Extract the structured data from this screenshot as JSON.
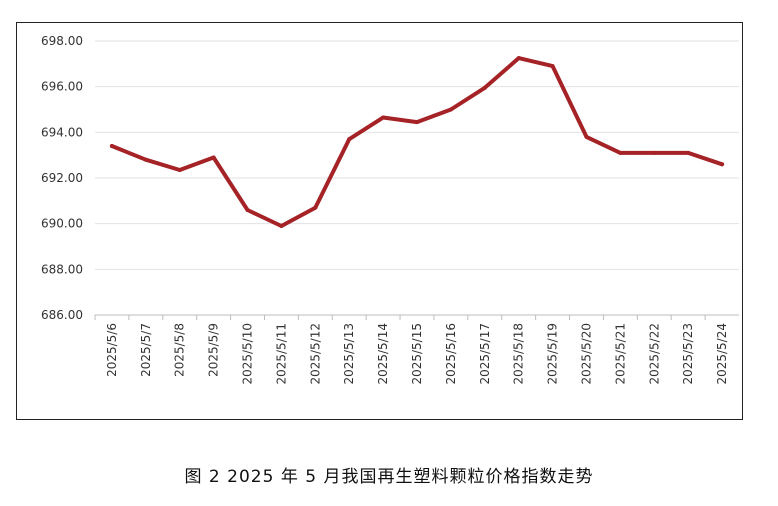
{
  "caption": "图 2  2025 年 5 月我国再生塑料颗粒价格指数走势",
  "chart_data": {
    "type": "line",
    "title": "",
    "xlabel": "",
    "ylabel": "",
    "ylim": [
      686,
      698
    ],
    "y_ticks": [
      "686.00",
      "688.00",
      "690.00",
      "692.00",
      "694.00",
      "696.00",
      "698.00"
    ],
    "grid": true,
    "categories": [
      "2025/5/6",
      "2025/5/7",
      "2025/5/8",
      "2025/5/9",
      "2025/5/10",
      "2025/5/11",
      "2025/5/12",
      "2025/5/13",
      "2025/5/14",
      "2025/5/15",
      "2025/5/16",
      "2025/5/17",
      "2025/5/18",
      "2025/5/19",
      "2025/5/20",
      "2025/5/21",
      "2025/5/22",
      "2025/5/23",
      "2025/5/24"
    ],
    "series": [
      {
        "color": "#a52226",
        "values": [
          693.4,
          692.8,
          692.35,
          692.9,
          690.6,
          689.9,
          690.7,
          693.7,
          694.65,
          694.45,
          695.0,
          695.95,
          697.25,
          696.9,
          693.8,
          693.1,
          693.1,
          693.1,
          692.6
        ]
      }
    ]
  }
}
